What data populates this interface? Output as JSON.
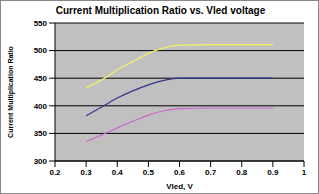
{
  "chart_data": {
    "type": "line",
    "title": "Current Multiplication Ratio vs. Vled voltage",
    "x_label": "Vled, V",
    "y_label": "Current Multiplication Ratio",
    "x": [
      0.3,
      0.35,
      0.4,
      0.45,
      0.5,
      0.55,
      0.6,
      0.7,
      0.8,
      0.9
    ],
    "series": [
      {
        "color": "#f2f266",
        "values": [
          433,
          447,
          465,
          480,
          495,
          505,
          510,
          511,
          511,
          511
        ]
      },
      {
        "color": "#33338f",
        "values": [
          382,
          398,
          414,
          427,
          438,
          446,
          450,
          450,
          450,
          450
        ]
      },
      {
        "color": "#cc66cc",
        "values": [
          335,
          347,
          360,
          372,
          383,
          391,
          395,
          396,
          396,
          396
        ]
      }
    ],
    "xlim": [
      0.2,
      1
    ],
    "xticks": [
      0.2,
      0.3,
      0.4,
      0.5,
      0.6,
      0.7,
      0.8,
      0.9,
      1
    ],
    "ylim": [
      300,
      550
    ],
    "yticks": [
      300,
      350,
      400,
      450,
      500,
      550
    ],
    "grid": true
  }
}
